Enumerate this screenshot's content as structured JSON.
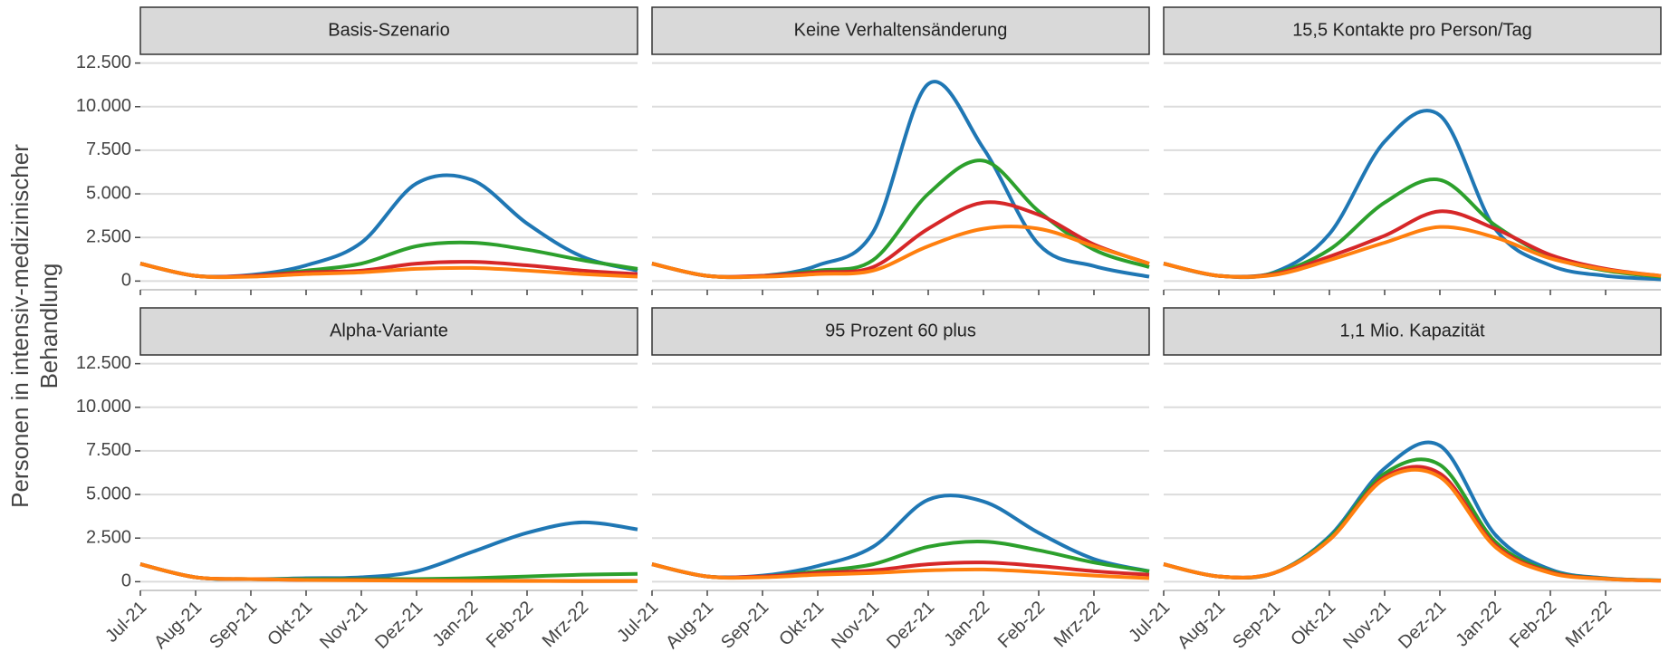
{
  "ylabel": [
    "Personen in intensiv-medizinischer",
    "Behandlung"
  ],
  "chart_data": [
    {
      "type": "line",
      "title": "Basis-Szenario",
      "categories": [
        "Jul-21",
        "Aug-21",
        "Sep-21",
        "Okt-21",
        "Nov-21",
        "Dez-21",
        "Jan-22",
        "Feb-22",
        "Mrz-22",
        null
      ],
      "series": [
        {
          "color": "#1f77b4",
          "values": [
            1000,
            300,
            350,
            900,
            2200,
            5600,
            5800,
            3300,
            1400,
            600
          ]
        },
        {
          "color": "#2ca02c",
          "values": [
            1000,
            300,
            300,
            600,
            1000,
            2000,
            2200,
            1800,
            1200,
            700
          ]
        },
        {
          "color": "#d62728",
          "values": [
            1000,
            300,
            300,
            500,
            600,
            1000,
            1100,
            900,
            600,
            400
          ]
        },
        {
          "color": "#ff7f0e",
          "values": [
            1000,
            300,
            250,
            400,
            500,
            700,
            750,
            600,
            400,
            250
          ]
        }
      ],
      "ylim": [
        -500,
        13000
      ],
      "yticks": [
        0,
        {
          "value": 2500,
          "label": "2.500"
        },
        {
          "value": 5000,
          "label": "5.000"
        },
        {
          "value": 7500,
          "label": "7.500"
        },
        {
          "value": 10000,
          "label": "10.000"
        },
        {
          "value": 12500,
          "label": "12.500"
        }
      ],
      "grid": true
    },
    {
      "type": "line",
      "title": "Keine Verhaltensänderung",
      "categories": [
        "Jul-21",
        "Aug-21",
        "Sep-21",
        "Okt-21",
        "Nov-21",
        "Dez-21",
        "Jan-22",
        "Feb-22",
        "Mrz-22",
        null
      ],
      "series": [
        {
          "color": "#1f77b4",
          "values": [
            1000,
            300,
            300,
            900,
            2800,
            11300,
            7600,
            2100,
            860,
            250
          ]
        },
        {
          "color": "#2ca02c",
          "values": [
            1000,
            300,
            300,
            600,
            1200,
            5000,
            6900,
            4000,
            1800,
            800
          ]
        },
        {
          "color": "#d62728",
          "values": [
            1000,
            300,
            300,
            500,
            800,
            3000,
            4500,
            3800,
            2100,
            1000
          ]
        },
        {
          "color": "#ff7f0e",
          "values": [
            1000,
            300,
            250,
            400,
            600,
            2000,
            3000,
            3000,
            2000,
            1000
          ]
        }
      ],
      "ylim": [
        -500,
        13000
      ],
      "yticks": [
        0,
        {
          "value": 2500,
          "label": "2.500"
        },
        {
          "value": 5000,
          "label": "5.000"
        },
        {
          "value": 7500,
          "label": "7.500"
        },
        {
          "value": 10000,
          "label": "10.000"
        },
        {
          "value": 12500,
          "label": "12.500"
        }
      ],
      "grid": true
    },
    {
      "type": "line",
      "title": "15,5 Kontakte pro Person/Tag",
      "categories": [
        "Jul-21",
        "Aug-21",
        "Sep-21",
        "Okt-21",
        "Nov-21",
        "Dez-21",
        "Jan-22",
        "Feb-22",
        "Mrz-22",
        null
      ],
      "series": [
        {
          "color": "#1f77b4",
          "values": [
            1000,
            300,
            500,
            2700,
            8000,
            9500,
            3000,
            900,
            300,
            100
          ]
        },
        {
          "color": "#2ca02c",
          "values": [
            1000,
            300,
            450,
            1800,
            4500,
            5800,
            3200,
            1400,
            600,
            250
          ]
        },
        {
          "color": "#d62728",
          "values": [
            1000,
            300,
            400,
            1400,
            2600,
            4000,
            3000,
            1500,
            700,
            300
          ]
        },
        {
          "color": "#ff7f0e",
          "values": [
            1000,
            300,
            350,
            1200,
            2200,
            3100,
            2500,
            1300,
            650,
            300
          ]
        }
      ],
      "ylim": [
        -500,
        13000
      ],
      "yticks": [
        0,
        {
          "value": 2500,
          "label": "2.500"
        },
        {
          "value": 5000,
          "label": "5.000"
        },
        {
          "value": 7500,
          "label": "7.500"
        },
        {
          "value": 10000,
          "label": "10.000"
        },
        {
          "value": 12500,
          "label": "12.500"
        }
      ],
      "grid": true
    },
    {
      "type": "line",
      "title": "Alpha-Variante",
      "categories": [
        "Jul-21",
        "Aug-21",
        "Sep-21",
        "Okt-21",
        "Nov-21",
        "Dez-21",
        "Jan-22",
        "Feb-22",
        "Mrz-22",
        null
      ],
      "series": [
        {
          "color": "#1f77b4",
          "values": [
            1000,
            250,
            150,
            200,
            250,
            600,
            1700,
            2800,
            3400,
            3000
          ]
        },
        {
          "color": "#2ca02c",
          "values": [
            1000,
            250,
            150,
            150,
            150,
            150,
            200,
            300,
            400,
            450
          ]
        },
        {
          "color": "#d62728",
          "values": [
            1000,
            250,
            150,
            100,
            100,
            80,
            60,
            50,
            40,
            40
          ]
        },
        {
          "color": "#ff7f0e",
          "values": [
            1000,
            250,
            150,
            100,
            80,
            60,
            50,
            40,
            30,
            30
          ]
        }
      ],
      "ylim": [
        -500,
        13000
      ],
      "yticks": [
        0,
        {
          "value": 2500,
          "label": "2.500"
        },
        {
          "value": 5000,
          "label": "5.000"
        },
        {
          "value": 7500,
          "label": "7.500"
        },
        {
          "value": 10000,
          "label": "10.000"
        },
        {
          "value": 12500,
          "label": "12.500"
        }
      ],
      "grid": true
    },
    {
      "type": "line",
      "title": "95 Prozent 60 plus",
      "categories": [
        "Jul-21",
        "Aug-21",
        "Sep-21",
        "Okt-21",
        "Nov-21",
        "Dez-21",
        "Jan-22",
        "Feb-22",
        "Mrz-22",
        null
      ],
      "series": [
        {
          "color": "#1f77b4",
          "values": [
            1000,
            300,
            350,
            900,
            2000,
            4700,
            4600,
            2800,
            1300,
            600
          ]
        },
        {
          "color": "#2ca02c",
          "values": [
            1000,
            300,
            300,
            600,
            1000,
            2000,
            2300,
            1800,
            1100,
            600
          ]
        },
        {
          "color": "#d62728",
          "values": [
            1000,
            300,
            300,
            500,
            650,
            1000,
            1100,
            900,
            600,
            400
          ]
        },
        {
          "color": "#ff7f0e",
          "values": [
            1000,
            300,
            250,
            400,
            500,
            650,
            700,
            550,
            350,
            200
          ]
        }
      ],
      "ylim": [
        -500,
        13000
      ],
      "yticks": [
        0,
        {
          "value": 2500,
          "label": "2.500"
        },
        {
          "value": 5000,
          "label": "5.000"
        },
        {
          "value": 7500,
          "label": "7.500"
        },
        {
          "value": 10000,
          "label": "10.000"
        },
        {
          "value": 12500,
          "label": "12.500"
        }
      ],
      "grid": true
    },
    {
      "type": "line",
      "title": "1,1 Mio. Kapazität",
      "categories": [
        "Jul-21",
        "Aug-21",
        "Sep-21",
        "Okt-21",
        "Nov-21",
        "Dez-21",
        "Jan-22",
        "Feb-22",
        "Mrz-22",
        null
      ],
      "series": [
        {
          "color": "#1f77b4",
          "values": [
            1000,
            300,
            500,
            2600,
            6500,
            7800,
            2700,
            700,
            200,
            80
          ]
        },
        {
          "color": "#2ca02c",
          "values": [
            1000,
            300,
            500,
            2500,
            6200,
            6700,
            2300,
            600,
            180,
            70
          ]
        },
        {
          "color": "#d62728",
          "values": [
            1000,
            300,
            500,
            2400,
            6000,
            6200,
            2100,
            550,
            170,
            60
          ]
        },
        {
          "color": "#ff7f0e",
          "values": [
            1000,
            300,
            500,
            2400,
            5900,
            6000,
            2000,
            500,
            160,
            60
          ]
        }
      ],
      "ylim": [
        -500,
        13000
      ],
      "yticks": [
        0,
        {
          "value": 2500,
          "label": "2.500"
        },
        {
          "value": 5000,
          "label": "5.000"
        },
        {
          "value": 7500,
          "label": "7.500"
        },
        {
          "value": 10000,
          "label": "10.000"
        },
        {
          "value": 12500,
          "label": "12.500"
        }
      ],
      "grid": true
    }
  ]
}
